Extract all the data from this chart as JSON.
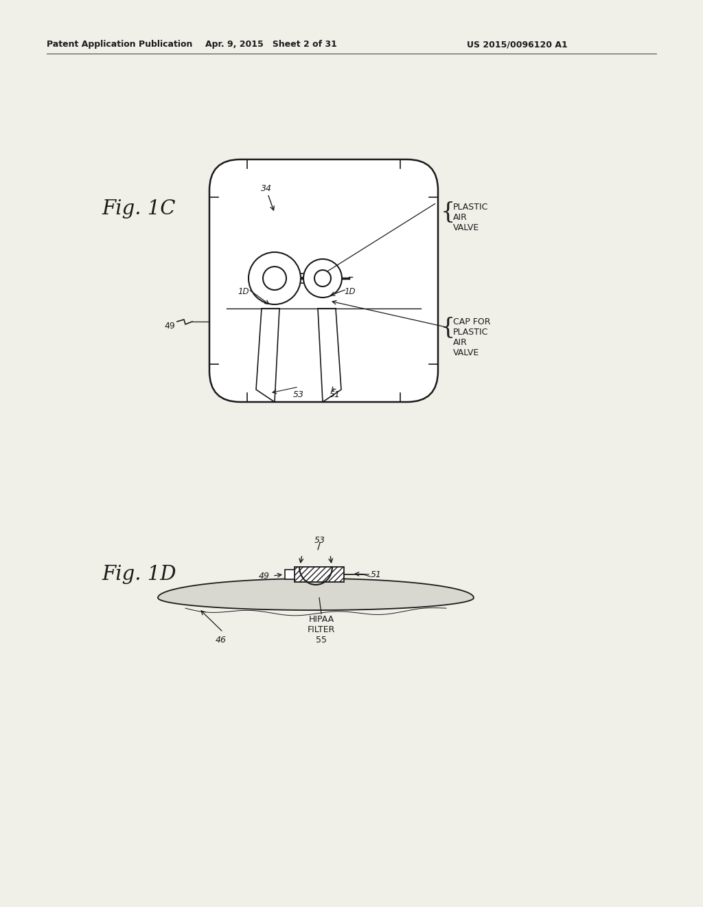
{
  "bg_color": "#f0efe8",
  "line_color": "#1a1a1a",
  "header_left": "Patent Application Publication",
  "header_center": "Apr. 9, 2015   Sheet 2 of 31",
  "header_right": "US 2015/0096120 A1",
  "fig1c_label": "Fig. 1C",
  "fig1d_label": "Fig. 1D",
  "note_plastic_air_valve": "PLASTIC\nAIR\nVALVE",
  "note_cap_for": "CAP FOR\nPLASTIC\nAIR\nVALVE",
  "label_34": "34",
  "label_1D_left": "1D",
  "label_1D_right": "1D",
  "label_49_fig1c": "49",
  "label_53_fig1c": "53",
  "label_51_fig1c": "51",
  "label_53_fig1d": "53",
  "label_51_fig1d": "51",
  "label_49_fig1d": "49",
  "label_46": "46",
  "label_hipaa": "HIPAA\nFILTER\n55"
}
